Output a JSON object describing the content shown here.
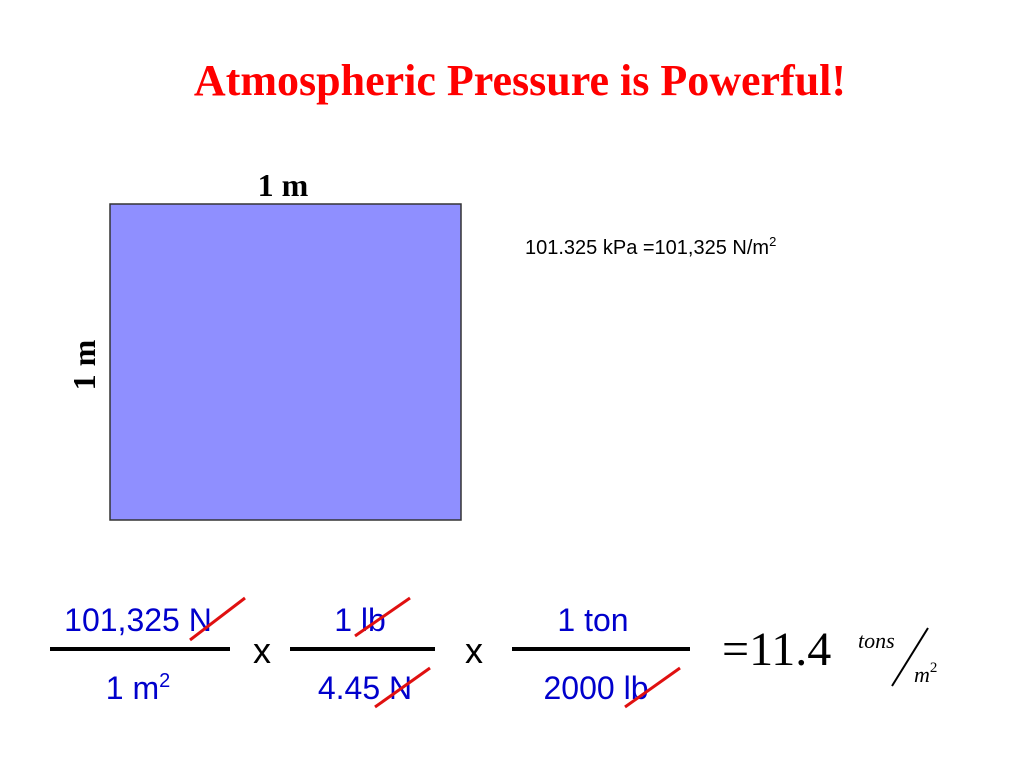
{
  "title": "Atmospheric Pressure is Powerful!",
  "square": {
    "top_label": "1 m",
    "side_label": "1 m"
  },
  "note": {
    "text": "101.325 kPa =101,325 N/m",
    "sup": "2"
  },
  "equation": {
    "fractions": [
      {
        "numerator": "101,325 N",
        "denominator": "1 m",
        "denominator_sup": "2"
      },
      {
        "numerator": "1 lb",
        "denominator": "4.45 N"
      },
      {
        "numerator": "1 ton",
        "denominator": "2000 lb"
      }
    ],
    "operators": [
      "x",
      "x"
    ],
    "result": {
      "value": "=11.4",
      "unit_numerator": "tons",
      "unit_denominator": "m",
      "unit_denominator_sup": "2"
    }
  }
}
